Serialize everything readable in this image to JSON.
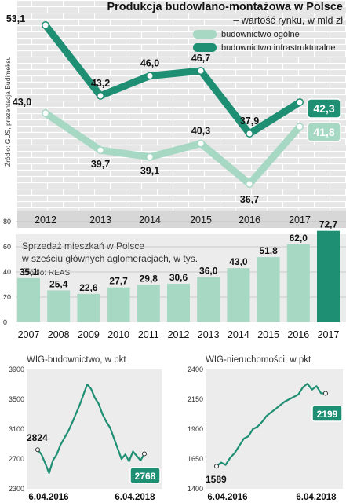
{
  "top": {
    "title": "Produkcja budowlano-montażowa w Polsce",
    "subtitle": "– wartość rynku, w mld zł",
    "source": "Źródło: GUS, prezentacja Budimeksu",
    "colors": {
      "general": "#a6d8c4",
      "infra": "#1f8f74",
      "highlight_general": "#a6d8c4",
      "highlight_infra": "#1f8f74"
    }
  },
  "bars": {
    "title_line1": "Sprzedaż mieszkań w Polsce",
    "title_line2": "w sześciu głównych aglomeracjach, w tys.",
    "source": "Źródło: REAS",
    "colors": {
      "bar": "#a6d8c4",
      "last": "#1f8f74"
    }
  },
  "wig": {
    "left_title": "WIG-budownictwo, w pkt",
    "right_title": "WIG-nieruchomości, w pkt",
    "colors": {
      "line": "#1f8f74"
    }
  },
  "chart_data": [
    {
      "type": "line",
      "title": "Produkcja budowlano-montażowa w Polsce",
      "subtitle": "– wartość rynku, w mld zł",
      "categories": [
        "2012",
        "2013",
        "2014",
        "2015",
        "2016",
        "2017"
      ],
      "series": [
        {
          "name": "budownictwo ogólne",
          "values": [
            43.0,
            39.7,
            39.1,
            40.3,
            36.7,
            41.8
          ],
          "labels": [
            "43,0",
            "39,7",
            "39,1",
            "40,3",
            "36,7",
            "41,8"
          ]
        },
        {
          "name": "budownictwo infrastrukturalne",
          "values": [
            53.1,
            43.2,
            46.0,
            46.7,
            37.9,
            42.3
          ],
          "labels": [
            "53,1",
            "43,2",
            "46,0",
            "46,7",
            "37,9",
            "42,3"
          ]
        }
      ],
      "ylim": [
        34,
        55
      ],
      "legend": "top-right",
      "grid": false
    },
    {
      "type": "bar",
      "title": "Sprzedaż mieszkań w Polsce w sześciu głównych aglomeracjach, w tys.",
      "categories": [
        "2007",
        "2008",
        "2009",
        "2010",
        "2011",
        "2012",
        "2013",
        "2014",
        "2015",
        "2016",
        "2017"
      ],
      "values": [
        35.1,
        25.4,
        22.6,
        27.7,
        29.8,
        30.6,
        36.0,
        43.0,
        51.8,
        62.0,
        72.7
      ],
      "labels": [
        "35,1",
        "25,4",
        "22,6",
        "27,7",
        "29,8",
        "30,6",
        "36,0",
        "43,0",
        "51,8",
        "62,0",
        "72,7"
      ],
      "yticks": [
        "0",
        "20",
        "40",
        "60",
        "80"
      ],
      "ylim": [
        0,
        80
      ],
      "grid": true
    },
    {
      "type": "line",
      "title": "WIG-budownictwo, w pkt",
      "ylim": [
        2300,
        3900
      ],
      "yticks": [
        "2300",
        "2700",
        "3100",
        "3500",
        "3900"
      ],
      "xlabels": [
        "6.04.2016",
        "6.04.2018"
      ],
      "start_label": "2824",
      "end_label": "2768",
      "values": [
        2824,
        2760,
        2640,
        2510,
        2680,
        2760,
        2890,
        2980,
        3070,
        3180,
        3300,
        3420,
        3560,
        3700,
        3640,
        3520,
        3440,
        3300,
        3200,
        3120,
        2980,
        2840,
        2700,
        2760,
        2670,
        2800,
        2740,
        2680,
        2768
      ]
    },
    {
      "type": "line",
      "title": "WIG-nieruchomości, w pkt",
      "ylim": [
        1400,
        2400
      ],
      "yticks": [
        "1400",
        "1650",
        "1900",
        "2150",
        "2400"
      ],
      "xlabels": [
        "6.04.2016",
        "6.04.2018"
      ],
      "start_label": "1589",
      "end_label": "2199",
      "values": [
        1589,
        1620,
        1600,
        1660,
        1700,
        1760,
        1820,
        1840,
        1900,
        1920,
        1960,
        2010,
        2040,
        2070,
        2100,
        2130,
        2150,
        2170,
        2190,
        2250,
        2280,
        2230,
        2260,
        2200,
        2199
      ]
    }
  ]
}
